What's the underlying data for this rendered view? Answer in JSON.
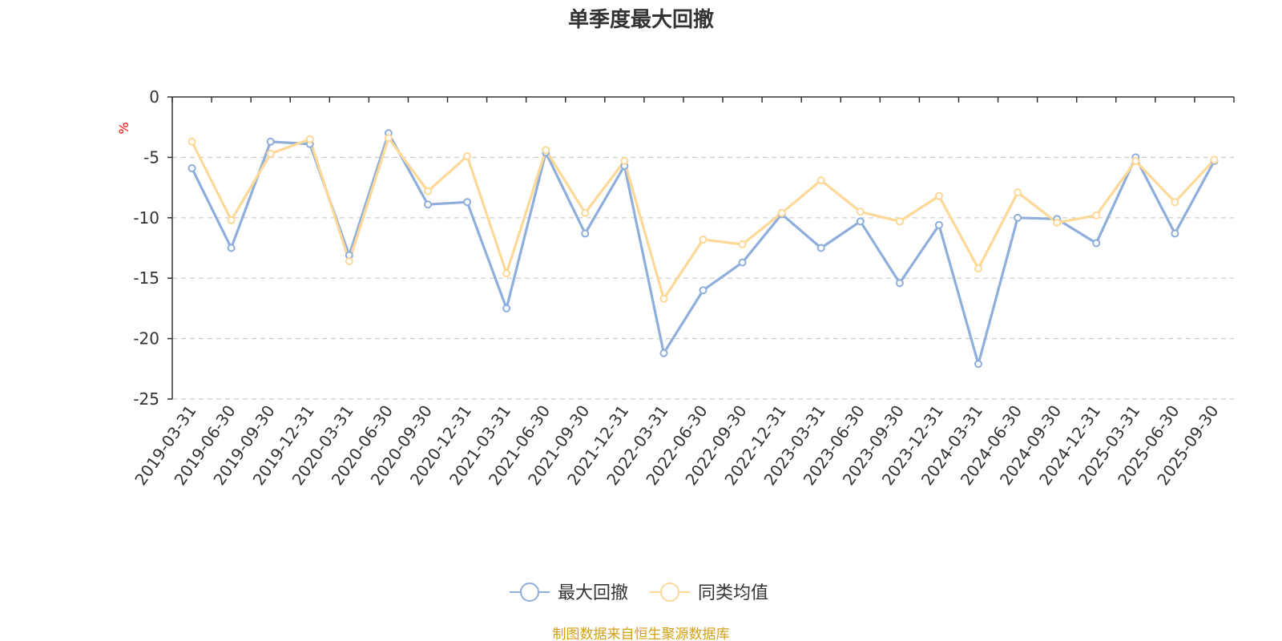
{
  "chart_data": {
    "type": "line",
    "title": "单季度最大回撤",
    "ylabel": "%",
    "xlabel": "",
    "ylim": [
      -25,
      0
    ],
    "yticks": [
      0,
      -5,
      -10,
      -15,
      -20,
      -25
    ],
    "grid": true,
    "legend_position": "bottom-center",
    "categories": [
      "2019-03-31",
      "2019-06-30",
      "2019-09-30",
      "2019-12-31",
      "2020-03-31",
      "2020-06-30",
      "2020-09-30",
      "2020-12-31",
      "2021-03-31",
      "2021-06-30",
      "2021-09-30",
      "2021-12-31",
      "2022-03-31",
      "2022-06-30",
      "2022-09-30",
      "2022-12-31",
      "2023-03-31",
      "2023-06-30",
      "2023-09-30",
      "2023-12-31",
      "2024-03-31",
      "2024-06-30",
      "2024-09-30",
      "2024-12-31",
      "2025-03-31",
      "2025-06-30",
      "2025-09-30"
    ],
    "series": [
      {
        "name": "最大回撤",
        "color": "#8eaedb",
        "values": [
          -5.9,
          -12.5,
          -3.7,
          -3.9,
          -13.1,
          -3.0,
          -8.9,
          -8.7,
          -17.5,
          -4.6,
          -11.3,
          -5.7,
          -21.2,
          -16.0,
          -13.7,
          -9.7,
          -12.5,
          -10.3,
          -15.4,
          -10.6,
          -22.1,
          -10.0,
          -10.1,
          -12.1,
          -5.0,
          -11.3,
          -5.3
        ]
      },
      {
        "name": "同类均值",
        "color": "#fdd897",
        "values": [
          -3.7,
          -10.2,
          -4.7,
          -3.5,
          -13.6,
          -3.4,
          -7.8,
          -4.9,
          -14.6,
          -4.4,
          -9.6,
          -5.3,
          -16.7,
          -11.8,
          -12.2,
          -9.6,
          -6.9,
          -9.5,
          -10.3,
          -8.2,
          -14.2,
          -7.9,
          -10.4,
          -9.8,
          -5.3,
          -8.7,
          -5.2
        ]
      }
    ]
  },
  "source": {
    "text": "制图数据来自恒生聚源数据库",
    "color": "#d4a017"
  },
  "unit_color": "#ff0000"
}
